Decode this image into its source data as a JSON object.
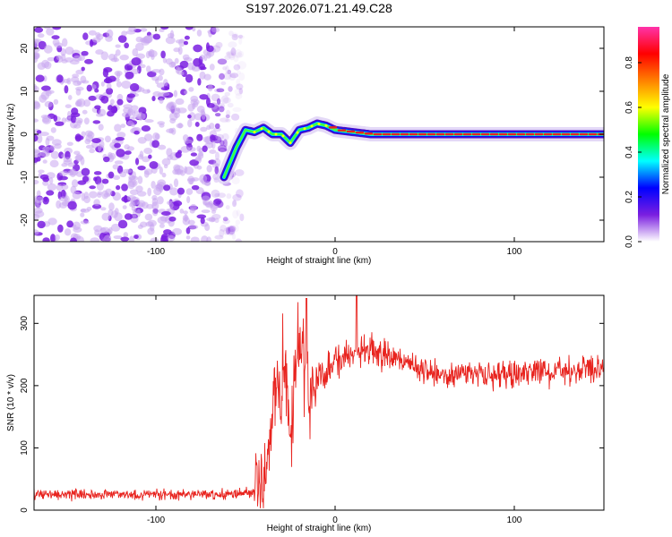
{
  "title": "S197.2026.071.21.49.C28",
  "colors": {
    "snr_line": "#e8241f",
    "noise_purple": "#7a1ee0",
    "noise_light": "#c9a6f0",
    "ridge_core": "#e8241f"
  },
  "chart_data": [
    {
      "type": "heatmap",
      "name": "spectrogram",
      "xlabel": "Height of straight line (km)",
      "ylabel": "Frequency (Hz)",
      "xlim": [
        -168,
        150
      ],
      "ylim": [
        -25,
        25
      ],
      "xticks": [
        -100,
        0,
        100
      ],
      "yticks": [
        -20,
        -10,
        0,
        10,
        20
      ],
      "grid": false,
      "noise_region_x": [
        -168,
        -52
      ],
      "ridge": {
        "x": [
          -62,
          -55,
          -50,
          -45,
          -40,
          -35,
          -30,
          -25,
          -20,
          -15,
          -10,
          -5,
          0,
          20,
          60,
          100,
          150
        ],
        "y": [
          -10,
          -3,
          1,
          0.5,
          1.5,
          0,
          0,
          -2,
          1,
          1.5,
          2.5,
          2,
          1,
          0,
          0,
          0,
          0
        ]
      },
      "colorbar": {
        "label": "Normalized spectral amplitude",
        "range": [
          0,
          0.96
        ],
        "ticks": [
          "0.0",
          "0.2",
          "0.4",
          "0.6",
          "0.8"
        ],
        "tick_values": [
          0,
          0.2,
          0.4,
          0.6,
          0.8
        ],
        "stops": [
          "#ffffff",
          "#7a1ee0",
          "#0000ff",
          "#00ffff",
          "#00ff00",
          "#ffff00",
          "#ff8000",
          "#ff0000",
          "#ff33aa"
        ]
      }
    },
    {
      "type": "line",
      "name": "snr",
      "xlabel": "Height of straight line (km)",
      "ylabel": "SNR (10 * v/v)",
      "xlim": [
        -168,
        150
      ],
      "ylim": [
        0,
        345
      ],
      "xticks": [
        -100,
        0,
        100
      ],
      "yticks": [
        0,
        100,
        200,
        300
      ],
      "grid": false,
      "series": [
        {
          "name": "SNR",
          "x": [
            -168,
            -150,
            -100,
            -60,
            -45,
            -40,
            -36,
            -33,
            -30,
            -28,
            -25,
            -20,
            -17,
            -14,
            -10,
            -5,
            0,
            5,
            10,
            15,
            20,
            30,
            40,
            50,
            60,
            70,
            80,
            100,
            120,
            140,
            150
          ],
          "y": [
            25,
            25,
            25,
            25,
            30,
            45,
            120,
            200,
            160,
            230,
            120,
            280,
            240,
            180,
            210,
            230,
            240,
            245,
            250,
            255,
            260,
            245,
            240,
            225,
            215,
            220,
            218,
            220,
            222,
            225,
            225
          ]
        }
      ],
      "peaks": [
        {
          "x": -16,
          "y": 340
        },
        {
          "x": 12,
          "y": 345
        }
      ]
    }
  ]
}
